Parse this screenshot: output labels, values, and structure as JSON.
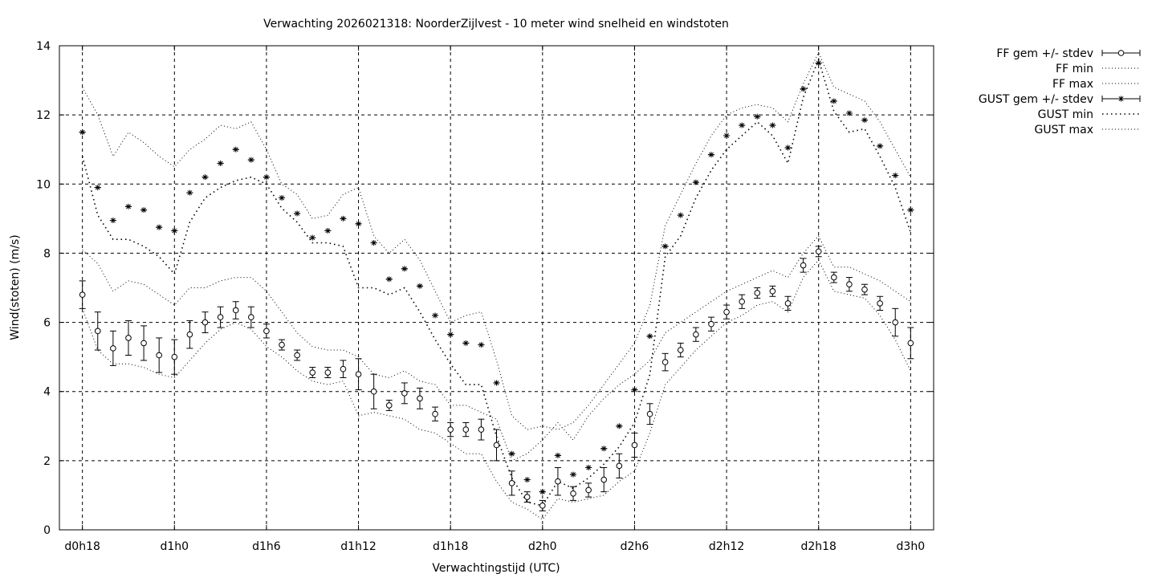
{
  "chart_data": {
    "type": "line",
    "title": "Verwachting 2026021318: NoorderZijlvest - 10 meter wind snelheid en windstoten",
    "xlabel": "Verwachtingstijd (UTC)",
    "ylabel": "Wind(stoten) (m/s)",
    "xunit": "hours since forecast start (d0h18)",
    "xlim": [
      -1.5,
      55.5
    ],
    "ylim": [
      0,
      14
    ],
    "y_ticks": [
      0,
      2,
      4,
      6,
      8,
      10,
      12,
      14
    ],
    "x_ticks": [
      {
        "x": 0,
        "label": "d0h18"
      },
      {
        "x": 6,
        "label": "d1h0"
      },
      {
        "x": 12,
        "label": "d1h6"
      },
      {
        "x": 18,
        "label": "d1h12"
      },
      {
        "x": 24,
        "label": "d1h18"
      },
      {
        "x": 30,
        "label": "d2h0"
      },
      {
        "x": 36,
        "label": "d2h6"
      },
      {
        "x": 42,
        "label": "d2h12"
      },
      {
        "x": 48,
        "label": "d2h18"
      },
      {
        "x": 54,
        "label": "d3h0"
      }
    ],
    "grid": true,
    "legend_position": "outside-top-right",
    "x": [
      0,
      1,
      2,
      3,
      4,
      5,
      6,
      7,
      8,
      9,
      10,
      11,
      12,
      13,
      14,
      15,
      16,
      17,
      18,
      19,
      20,
      21,
      22,
      23,
      24,
      25,
      26,
      27,
      28,
      29,
      30,
      31,
      32,
      33,
      34,
      35,
      36,
      37,
      38,
      39,
      40,
      41,
      42,
      43,
      44,
      45,
      46,
      47,
      48,
      49,
      50,
      51,
      52,
      53,
      54
    ],
    "series": [
      {
        "name": "FF gem +/- stdev",
        "style": "errorbars-circle",
        "values": [
          6.8,
          5.75,
          5.25,
          5.55,
          5.4,
          5.05,
          5.0,
          5.65,
          6.0,
          6.15,
          6.35,
          6.15,
          5.75,
          5.35,
          5.05,
          4.55,
          4.55,
          4.65,
          4.5,
          4.0,
          3.6,
          3.95,
          3.8,
          3.35,
          2.9,
          2.9,
          2.9,
          2.45,
          1.35,
          0.95,
          0.7,
          1.4,
          1.05,
          1.15,
          1.45,
          1.85,
          2.45,
          3.35,
          4.85,
          5.2,
          5.65,
          5.95,
          6.3,
          6.6,
          6.85,
          6.9,
          6.55,
          7.65,
          8.05,
          7.3,
          7.1,
          6.95,
          6.55,
          6.0,
          5.4
        ],
        "stdev": [
          0.4,
          0.55,
          0.5,
          0.5,
          0.5,
          0.5,
          0.5,
          0.4,
          0.3,
          0.3,
          0.25,
          0.3,
          0.2,
          0.15,
          0.15,
          0.15,
          0.15,
          0.25,
          0.45,
          0.5,
          0.15,
          0.3,
          0.3,
          0.2,
          0.2,
          0.2,
          0.3,
          0.45,
          0.35,
          0.15,
          0.15,
          0.4,
          0.2,
          0.2,
          0.35,
          0.35,
          0.35,
          0.3,
          0.25,
          0.2,
          0.2,
          0.2,
          0.2,
          0.2,
          0.15,
          0.15,
          0.2,
          0.2,
          0.15,
          0.15,
          0.2,
          0.15,
          0.2,
          0.4,
          0.45
        ]
      },
      {
        "name": "FF min",
        "style": "dotted",
        "values": [
          6.4,
          5.2,
          4.8,
          4.8,
          4.7,
          4.5,
          4.4,
          4.9,
          5.4,
          5.8,
          6.0,
          5.8,
          5.3,
          5.0,
          4.6,
          4.3,
          4.2,
          4.3,
          3.3,
          3.4,
          3.3,
          3.2,
          2.9,
          2.8,
          2.5,
          2.2,
          2.2,
          1.4,
          0.8,
          0.6,
          0.3,
          0.9,
          0.8,
          0.9,
          1.0,
          1.4,
          1.7,
          2.8,
          4.2,
          4.7,
          5.2,
          5.6,
          6.0,
          6.2,
          6.5,
          6.6,
          6.3,
          7.3,
          7.8,
          6.9,
          6.8,
          6.7,
          6.2,
          5.5,
          4.6
        ]
      },
      {
        "name": "FF max",
        "style": "dotted",
        "values": [
          8.1,
          7.7,
          6.9,
          7.2,
          7.1,
          6.8,
          6.5,
          7.0,
          7.0,
          7.2,
          7.3,
          7.3,
          6.9,
          6.3,
          5.7,
          5.3,
          5.2,
          5.2,
          5.0,
          4.5,
          4.4,
          4.6,
          4.3,
          4.2,
          3.6,
          3.6,
          3.4,
          3.2,
          2.0,
          2.2,
          2.6,
          3.1,
          2.6,
          3.3,
          3.8,
          4.2,
          4.5,
          4.9,
          5.7,
          6.0,
          6.3,
          6.6,
          6.9,
          7.1,
          7.3,
          7.5,
          7.3,
          8.0,
          8.5,
          7.6,
          7.6,
          7.4,
          7.2,
          6.9,
          6.6
        ]
      },
      {
        "name": "GUST gem +/- stdev",
        "style": "errorbars-star",
        "values": [
          11.5,
          9.9,
          8.95,
          9.35,
          9.25,
          8.75,
          8.65,
          9.75,
          10.2,
          10.6,
          11.0,
          10.7,
          10.2,
          9.6,
          9.15,
          8.45,
          8.65,
          9.0,
          8.85,
          8.3,
          7.25,
          7.55,
          7.05,
          6.2,
          5.65,
          5.4,
          5.35,
          4.25,
          2.2,
          1.45,
          1.1,
          2.15,
          1.6,
          1.8,
          2.35,
          3.0,
          4.05,
          5.6,
          8.2,
          9.1,
          10.05,
          10.85,
          11.4,
          11.7,
          11.95,
          11.7,
          11.05,
          12.75,
          13.5,
          12.4,
          12.05,
          11.85,
          11.1,
          10.25,
          9.25
        ]
      },
      {
        "name": "GUST min",
        "style": "dotted",
        "values": [
          10.8,
          9.1,
          8.4,
          8.4,
          8.2,
          7.9,
          7.4,
          8.9,
          9.6,
          9.9,
          10.1,
          10.2,
          10.0,
          9.3,
          8.9,
          8.3,
          8.3,
          8.2,
          7.0,
          7.0,
          6.8,
          7.0,
          6.3,
          5.5,
          4.8,
          4.2,
          4.2,
          2.7,
          1.5,
          0.8,
          0.7,
          1.4,
          1.2,
          1.5,
          1.9,
          2.4,
          3.1,
          4.5,
          7.9,
          8.5,
          9.6,
          10.4,
          11.0,
          11.4,
          11.8,
          11.4,
          10.6,
          12.5,
          13.6,
          12.1,
          11.5,
          11.6,
          10.8,
          9.9,
          8.6
        ]
      },
      {
        "name": "GUST max",
        "style": "dotted",
        "values": [
          12.8,
          12.0,
          10.8,
          11.5,
          11.2,
          10.8,
          10.5,
          11.0,
          11.3,
          11.7,
          11.6,
          11.8,
          11.0,
          10.0,
          9.7,
          9.0,
          9.1,
          9.7,
          9.9,
          8.5,
          8.0,
          8.4,
          7.8,
          6.9,
          6.0,
          6.2,
          6.3,
          4.9,
          3.3,
          2.9,
          3.0,
          2.9,
          3.1,
          3.6,
          4.2,
          4.8,
          5.4,
          6.5,
          8.8,
          9.7,
          10.6,
          11.4,
          12.0,
          12.2,
          12.3,
          12.2,
          11.8,
          12.9,
          13.8,
          12.8,
          12.6,
          12.4,
          11.8,
          11.0,
          10.2
        ]
      }
    ]
  }
}
